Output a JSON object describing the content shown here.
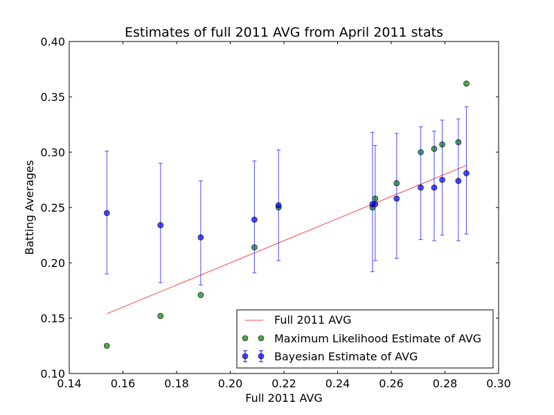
{
  "chart_data": {
    "type": "scatter",
    "title": "Estimates of full 2011 AVG from April 2011 stats",
    "xlabel": "Full 2011 AVG",
    "ylabel": "Batting Averages",
    "xlim": [
      0.14,
      0.3
    ],
    "ylim": [
      0.1,
      0.4
    ],
    "x_ticks": [
      "0.14",
      "0.16",
      "0.18",
      "0.20",
      "0.22",
      "0.24",
      "0.26",
      "0.28",
      "0.30"
    ],
    "y_ticks": [
      "0.10",
      "0.15",
      "0.20",
      "0.25",
      "0.30",
      "0.35",
      "0.40"
    ],
    "grid": false,
    "legend_position": "lower-right",
    "series": [
      {
        "name": "Full 2011 AVG",
        "kind": "line",
        "color": "#ff0000",
        "x": [
          0.154,
          0.288
        ],
        "y": [
          0.154,
          0.288
        ]
      },
      {
        "name": "Maximum Likelihood Estimate of AVG",
        "kind": "points",
        "color": "#008000",
        "x": [
          0.154,
          0.174,
          0.189,
          0.209,
          0.218,
          0.253,
          0.254,
          0.262,
          0.271,
          0.276,
          0.279,
          0.285,
          0.288
        ],
        "y": [
          0.125,
          0.152,
          0.171,
          0.214,
          0.25,
          0.25,
          0.258,
          0.272,
          0.3,
          0.303,
          0.307,
          0.309,
          0.362
        ]
      },
      {
        "name": "Bayesian Estimate of AVG",
        "kind": "errorbar",
        "color": "#0000ff",
        "x": [
          0.154,
          0.174,
          0.189,
          0.209,
          0.218,
          0.253,
          0.254,
          0.262,
          0.271,
          0.276,
          0.279,
          0.285,
          0.288
        ],
        "y": [
          0.245,
          0.234,
          0.223,
          0.239,
          0.252,
          0.253,
          0.253,
          0.258,
          0.268,
          0.268,
          0.275,
          0.274,
          0.281
        ],
        "y_low": [
          0.19,
          0.182,
          0.18,
          0.191,
          0.202,
          0.192,
          0.202,
          0.204,
          0.221,
          0.22,
          0.225,
          0.22,
          0.226
        ],
        "y_high": [
          0.301,
          0.29,
          0.274,
          0.292,
          0.302,
          0.318,
          0.306,
          0.317,
          0.323,
          0.319,
          0.329,
          0.33,
          0.341
        ]
      }
    ]
  }
}
